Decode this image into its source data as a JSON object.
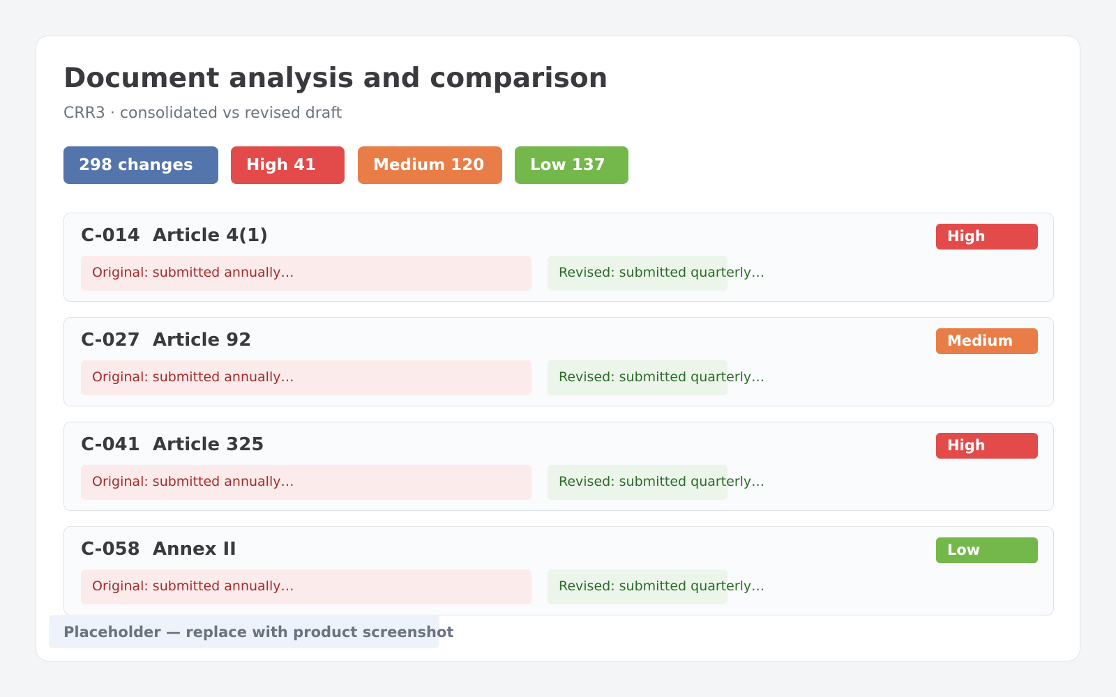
{
  "header": {
    "title": "Document analysis and comparison",
    "subtitle": "CRR3 · consolidated vs revised draft"
  },
  "summary": {
    "total": "298 changes",
    "high": "High 41",
    "medium": "Medium 120",
    "low": "Low 137"
  },
  "colors": {
    "total": "#5475ab",
    "high": "#e34a4a",
    "medium": "#e97d48",
    "low": "#74b84b"
  },
  "changes": [
    {
      "id": "C-014",
      "location": "Article 4(1)",
      "severity": "High",
      "original": "Original: submitted annually…",
      "revised": "Revised: submitted quarterly…"
    },
    {
      "id": "C-027",
      "location": "Article 92",
      "severity": "Medium",
      "original": "Original: submitted annually…",
      "revised": "Revised: submitted quarterly…"
    },
    {
      "id": "C-041",
      "location": "Article 325",
      "severity": "High",
      "original": "Original: submitted annually…",
      "revised": "Revised: submitted quarterly…"
    },
    {
      "id": "C-058",
      "location": "Annex II",
      "severity": "Low",
      "original": "Original: submitted annually…",
      "revised": "Revised: submitted quarterly…"
    }
  ],
  "placeholder": {
    "text": "Placeholder — replace with product screenshot"
  }
}
